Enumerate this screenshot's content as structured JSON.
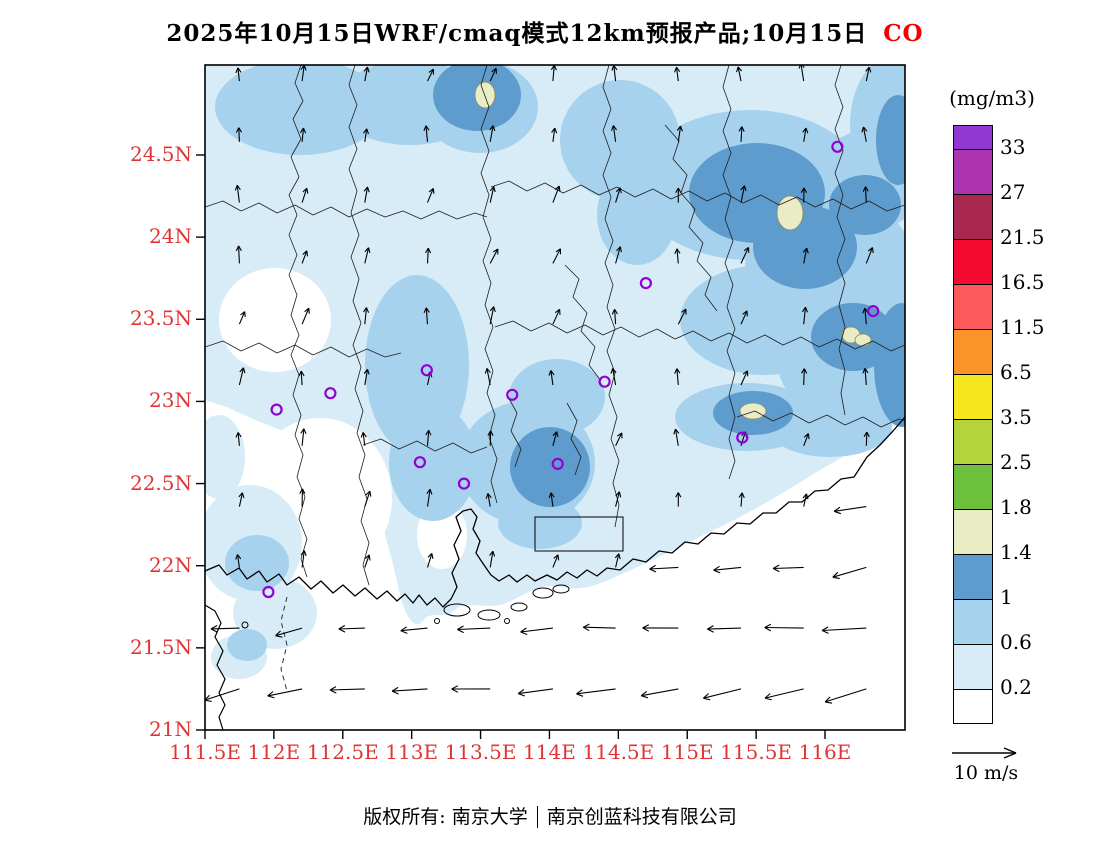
{
  "title": {
    "main": "2025年10月15日WRF/cmaq模式12km预报产品;10月15日",
    "species": "CO",
    "species_color": "#f40000"
  },
  "axes": {
    "label_color": "#e03434",
    "lat": [
      {
        "v": 24.5,
        "label": "24.5N"
      },
      {
        "v": 24.0,
        "label": "24N"
      },
      {
        "v": 23.5,
        "label": "23.5N"
      },
      {
        "v": 23.0,
        "label": "23N"
      },
      {
        "v": 22.5,
        "label": "22.5N"
      },
      {
        "v": 22.0,
        "label": "22N"
      },
      {
        "v": 21.5,
        "label": "21.5N"
      },
      {
        "v": 21.0,
        "label": "21N"
      }
    ],
    "lon": [
      {
        "v": 111.5,
        "label": "111.5E"
      },
      {
        "v": 112.0,
        "label": "112E"
      },
      {
        "v": 112.5,
        "label": "112.5E"
      },
      {
        "v": 113.0,
        "label": "113E"
      },
      {
        "v": 113.5,
        "label": "113.5E"
      },
      {
        "v": 114.0,
        "label": "114E"
      },
      {
        "v": 114.5,
        "label": "114.5E"
      },
      {
        "v": 115.0,
        "label": "115E"
      },
      {
        "v": 115.5,
        "label": "115.5E"
      },
      {
        "v": 116.0,
        "label": "116E"
      }
    ]
  },
  "colorbar": {
    "units": "(mg/m3)",
    "boundary_labels": [
      "33",
      "27",
      "21.5",
      "16.5",
      "11.5",
      "6.5",
      "3.5",
      "2.5",
      "1.8",
      "1.4",
      "1",
      "0.6",
      "0.2"
    ],
    "colors_top_to_bottom": [
      "#9138d2",
      "#ac34ae",
      "#a82850",
      "#f50a32",
      "#fa5a5a",
      "#fb9428",
      "#f5e61e",
      "#b4d43c",
      "#6cc03c",
      "#e9ecc4",
      "#5e9cce",
      "#a6d2ee",
      "#d8ecf8",
      "#ffffff"
    ]
  },
  "wind_legend": {
    "label": "10 m/s"
  },
  "footer": {
    "left": "版权所有: 南京大学",
    "right": "南京创蓝科技有限公司"
  },
  "map": {
    "marker_color": "#9400d3",
    "city_markers": [
      {
        "lon": 116.09,
        "lat": 24.55
      },
      {
        "lon": 116.35,
        "lat": 23.55
      },
      {
        "lon": 114.7,
        "lat": 23.72
      },
      {
        "lon": 114.4,
        "lat": 23.12
      },
      {
        "lon": 113.73,
        "lat": 23.04
      },
      {
        "lon": 115.4,
        "lat": 22.78
      },
      {
        "lon": 114.06,
        "lat": 22.62
      },
      {
        "lon": 113.06,
        "lat": 22.63
      },
      {
        "lon": 113.38,
        "lat": 22.5
      },
      {
        "lon": 112.41,
        "lat": 23.05
      },
      {
        "lon": 112.02,
        "lat": 22.95
      },
      {
        "lon": 113.11,
        "lat": 23.19
      },
      {
        "lon": 111.96,
        "lat": 21.84
      }
    ]
  },
  "chart_data": {
    "type": "heatmap",
    "title": "WRF/CMAQ 12km CO surface concentration forecast, 2025-10-15",
    "units": "mg/m3",
    "levels": [
      0.2,
      0.6,
      1,
      1.4,
      1.8,
      2.5,
      3.5,
      6.5,
      11.5,
      16.5,
      21.5,
      27,
      33
    ],
    "lon_range": [
      111.5,
      116.58
    ],
    "lat_range": [
      21.0,
      25.05
    ],
    "legend_position": "right",
    "description": "Filled contours of CO over Guangdong: mostly 0.2-1 mg/m3 (pale/medium blue); 1-1.4 mg/m3 (steel blue) cores in northeast Guangdong, the eastern coastal hills and the Pearl River Delta; small 1.4-1.8 mg/m3 (pale khaki) maxima inside those cores; white (<0.2) in the southwest and over the open sea. Wind vectors: weak northerly flow over land, stronger easterly (westward-pointing) flow over the northern South China Sea, reference vector 10 m/s."
  }
}
